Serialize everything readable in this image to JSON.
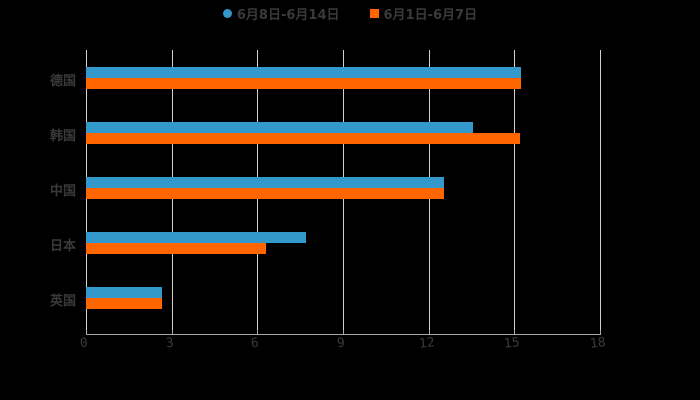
{
  "chart_data": {
    "type": "bar",
    "orientation": "horizontal",
    "title": "",
    "xlabel": "",
    "ylabel": "",
    "categories": [
      "德国",
      "韩国",
      "中国",
      "日本",
      "英国"
    ],
    "series": [
      {
        "name": "6月8日-6月14日",
        "color": "#3399cc",
        "values": [
          15.25,
          13.55,
          12.55,
          7.7,
          2.65
        ]
      },
      {
        "name": "6月1日-6月7日",
        "color": "#ff6600",
        "values": [
          15.25,
          15.2,
          12.55,
          6.3,
          2.65
        ]
      }
    ],
    "xlim": [
      0,
      18
    ],
    "xticks": [
      "0",
      "3",
      "6",
      "9",
      "12",
      "15",
      "18"
    ],
    "grid": true,
    "legend_position": "top"
  },
  "legend": {
    "item1": "6月8日-6月14日",
    "item2": "6月1日-6月7日"
  },
  "colors": {
    "series1": "#3399cc",
    "series2": "#ff6600",
    "background": "#000000"
  }
}
